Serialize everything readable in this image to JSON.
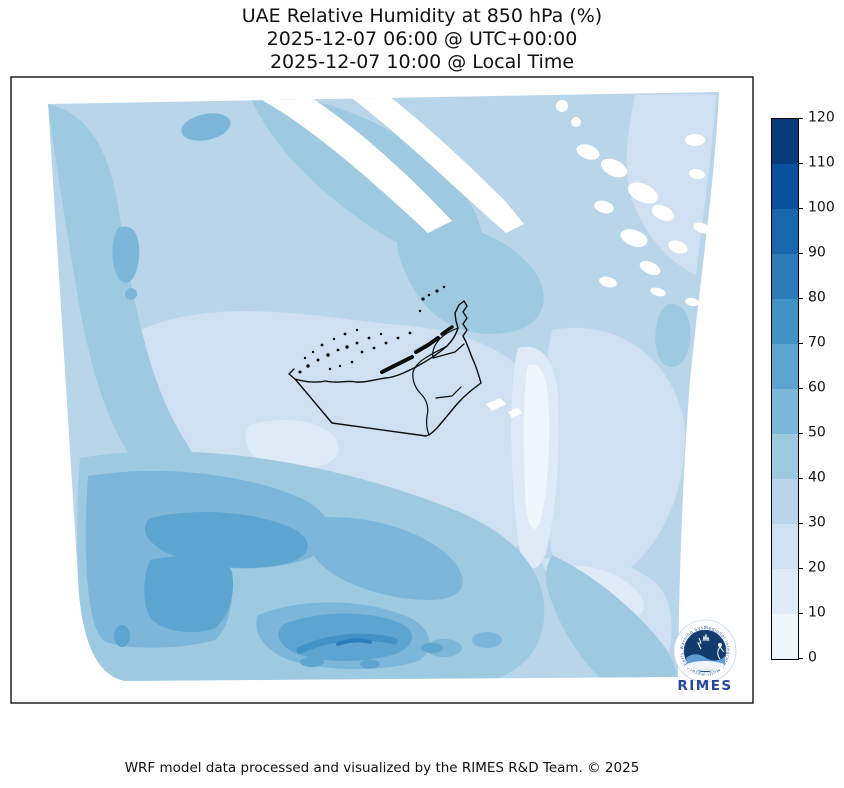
{
  "title": {
    "line1": "UAE Relative Humidity at 850 hPa (%)",
    "line2": "2025-12-07 06:00 @ UTC+00:00",
    "line3": "2025-12-07 10:00 @ Local Time"
  },
  "footer": {
    "credit": "WRF model data processed and visualized by the RIMES R&D Team. © 2025"
  },
  "colorbar": {
    "min": 0,
    "max": 120,
    "tick_step": 10,
    "ticks": [
      120,
      110,
      100,
      90,
      80,
      70,
      60,
      50,
      40,
      30,
      20,
      10,
      0
    ],
    "colors_top_to_bottom": [
      "#083b7b",
      "#08519c",
      "#1866ac",
      "#2c7cba",
      "#4292c6",
      "#5da4d0",
      "#7cb7d9",
      "#9ecae1",
      "#b9d5ea",
      "#cee0f1",
      "#deebf7",
      "#eff6fc"
    ]
  },
  "logo": {
    "wordmark": "RIMES",
    "ring_text": "Regional Integrated Multi-Hazard Early Warning System"
  },
  "chart_data": {
    "type": "heatmap",
    "title": "UAE Relative Humidity at 850 hPa (%)",
    "valid_time_utc": "2025-12-07 06:00 @ UTC+00:00",
    "valid_time_local": "2025-12-07 10:00 @ Local Time",
    "variable": "Relative Humidity",
    "pressure_level_hPa": 850,
    "units": "%",
    "levels": [
      0,
      10,
      20,
      30,
      40,
      50,
      60,
      70,
      80,
      90,
      100,
      110,
      120
    ],
    "palette": "Blues (12 discrete bands)",
    "legend_position": "right",
    "grid": false,
    "field_summary": {
      "displayed_range": [
        0,
        120
      ],
      "approx_field_range": [
        0,
        80
      ],
      "regions": [
        {
          "area": "northwest quadrant / Gulf waters",
          "rh_percent": "30-50"
        },
        {
          "area": "small maxima near northwest and left edge",
          "rh_percent": "50-60"
        },
        {
          "area": "center of domain (UAE interior desert)",
          "rh_percent": "20-30"
        },
        {
          "area": "pale streak east of Hajar mountains",
          "rh_percent": "0-20"
        },
        {
          "area": "southern third of domain",
          "rh_percent": "40-70"
        },
        {
          "area": "dark arc south-center",
          "rh_percent": "70-80"
        },
        {
          "area": "jagged white patches to the north (high terrain)",
          "rh_percent": "no data (masked)"
        }
      ]
    }
  }
}
